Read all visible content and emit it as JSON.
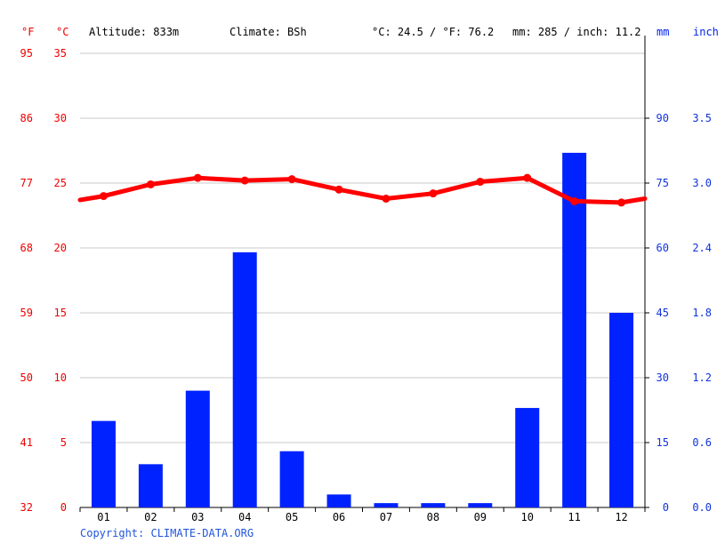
{
  "header": {
    "f_unit": "°F",
    "c_unit": "°C",
    "altitude": "Altitude: 833m",
    "climate": "Climate: BSh",
    "temp_summary": "°C: 24.5 / °F: 76.2",
    "precip_summary": "mm: 285 / inch: 11.2",
    "mm_unit": "mm",
    "inch_unit": "inch"
  },
  "copyright": "Copyright: CLIMATE-DATA.ORG",
  "colors": {
    "temperature": "#ff0000",
    "precipitation": "#0022ff",
    "grid": "#c8c8c8",
    "axis": "#000000"
  },
  "chart_data": {
    "type": "bar+line",
    "categories": [
      "01",
      "02",
      "03",
      "04",
      "05",
      "06",
      "07",
      "08",
      "09",
      "10",
      "11",
      "12"
    ],
    "series": [
      {
        "name": "mm",
        "type": "bar",
        "axis": "right",
        "values": [
          20,
          10,
          27,
          59,
          13,
          3,
          1,
          1,
          1,
          23,
          82,
          45
        ]
      },
      {
        "name": "°C",
        "type": "line",
        "axis": "left",
        "values": [
          24.0,
          24.9,
          25.4,
          25.2,
          25.3,
          24.5,
          23.8,
          24.2,
          25.1,
          25.4,
          23.6,
          23.5
        ],
        "edge_left": 23.7,
        "edge_right": 23.8
      }
    ],
    "left_axis_c": {
      "range": [
        0,
        35
      ],
      "ticks": [
        "0",
        "5",
        "10",
        "15",
        "20",
        "25",
        "30",
        "35"
      ]
    },
    "left_axis_f": {
      "ticks": [
        "32",
        "41",
        "50",
        "59",
        "68",
        "77",
        "86",
        "95"
      ]
    },
    "right_axis_mm": {
      "range": [
        0,
        105
      ],
      "ticks": [
        "0",
        "15",
        "30",
        "45",
        "60",
        "75",
        "90"
      ]
    },
    "right_axis_inch": {
      "ticks": [
        "0.0",
        "0.6",
        "1.2",
        "1.8",
        "2.4",
        "3.0",
        "3.5"
      ]
    },
    "grid": true
  }
}
